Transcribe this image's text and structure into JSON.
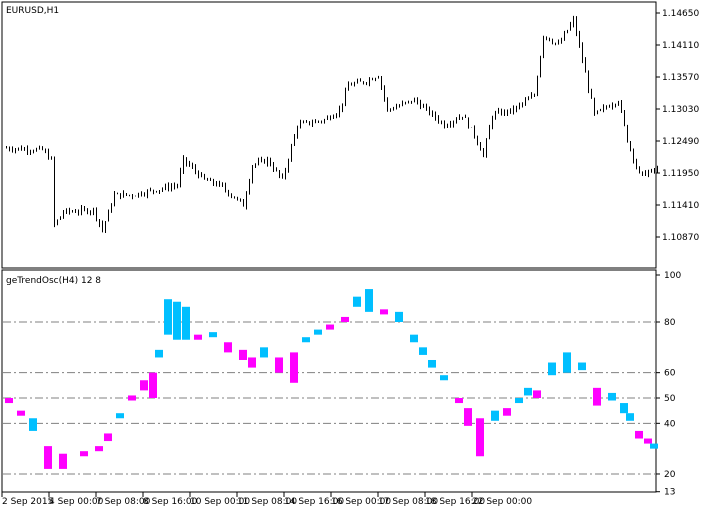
{
  "chart_data": [
    {
      "type": "bar",
      "title": "EURUSD,H1",
      "symbol": "EURUSD",
      "timeframe": "H1",
      "y_ticks": [
        1.1465,
        1.1411,
        1.1357,
        1.1303,
        1.1249,
        1.1195,
        1.1141,
        1.1087
      ],
      "ylim": [
        1.1047,
        1.1483
      ],
      "bar_color": "#000000",
      "close_keypoints": [
        [
          1,
          1.12372
        ],
        [
          13,
          1.12338
        ],
        [
          16,
          1.12169
        ],
        [
          17,
          1.11072
        ],
        [
          20,
          1.11292
        ],
        [
          30,
          1.11326
        ],
        [
          33,
          1.10988
        ],
        [
          37,
          1.11579
        ],
        [
          43,
          1.11579
        ],
        [
          58,
          1.11747
        ],
        [
          60,
          1.12169
        ],
        [
          67,
          1.11832
        ],
        [
          72,
          1.11747
        ],
        [
          80,
          1.1141
        ],
        [
          83,
          1.12085
        ],
        [
          88,
          1.12169
        ],
        [
          93,
          1.11832
        ],
        [
          98,
          1.1276
        ],
        [
          107,
          1.12844
        ],
        [
          112,
          1.13013
        ],
        [
          115,
          1.13435
        ],
        [
          120,
          1.13486
        ],
        [
          125,
          1.13604
        ],
        [
          128,
          1.13013
        ],
        [
          137,
          1.13182
        ],
        [
          147,
          1.1276
        ],
        [
          153,
          1.12929
        ],
        [
          157,
          1.12591
        ],
        [
          160,
          1.12254
        ],
        [
          163,
          1.12929
        ],
        [
          170,
          1.13013
        ],
        [
          177,
          1.13266
        ],
        [
          180,
          1.14279
        ],
        [
          185,
          1.1411
        ],
        [
          190,
          1.14532
        ],
        [
          193,
          1.13857
        ],
        [
          197,
          1.12929
        ],
        [
          202,
          1.13097
        ],
        [
          205,
          1.13182
        ],
        [
          208,
          1.12507
        ],
        [
          212,
          1.11916
        ],
        [
          218,
          1.12001
        ]
      ]
    },
    {
      "type": "heatmap",
      "title": "geTrendOsc(H4) 12 8",
      "y_ticks": [
        100,
        80,
        60,
        50,
        40,
        20,
        13
      ],
      "levels": [
        80,
        60,
        50,
        40,
        20
      ],
      "ylim": [
        13,
        100
      ],
      "colors": {
        "up": "#00BFFF",
        "down": "#FF00FF"
      },
      "blocks": [
        [
          2,
          48,
          50,
          "down"
        ],
        [
          6,
          43,
          45,
          "down"
        ],
        [
          10,
          37,
          42,
          "up"
        ],
        [
          15,
          22,
          31,
          "down"
        ],
        [
          20,
          22,
          28,
          "down"
        ],
        [
          27,
          27,
          29,
          "down"
        ],
        [
          32,
          29,
          31,
          "down"
        ],
        [
          35,
          33,
          36,
          "down"
        ],
        [
          39,
          42,
          44,
          "up"
        ],
        [
          43,
          49,
          51,
          "down"
        ],
        [
          47,
          53,
          57,
          "down"
        ],
        [
          50,
          50,
          60,
          "down"
        ],
        [
          52,
          66,
          69,
          "up"
        ],
        [
          55,
          75,
          89,
          "up"
        ],
        [
          58,
          73,
          88,
          "up"
        ],
        [
          61,
          73,
          86,
          "up"
        ],
        [
          65,
          73,
          75,
          "down"
        ],
        [
          70,
          74,
          76,
          "up"
        ],
        [
          75,
          68,
          72,
          "down"
        ],
        [
          80,
          65,
          69,
          "down"
        ],
        [
          83,
          62,
          66,
          "down"
        ],
        [
          87,
          66,
          70,
          "up"
        ],
        [
          92,
          60,
          66,
          "down"
        ],
        [
          97,
          56,
          68,
          "down"
        ],
        [
          101,
          72,
          74,
          "up"
        ],
        [
          105,
          75,
          77,
          "up"
        ],
        [
          109,
          77,
          79,
          "down"
        ],
        [
          114,
          80,
          82,
          "down"
        ],
        [
          118,
          86,
          90,
          "up"
        ],
        [
          122,
          84,
          93,
          "up"
        ],
        [
          127,
          83,
          85,
          "down"
        ],
        [
          132,
          80,
          84,
          "up"
        ],
        [
          137,
          72,
          75,
          "up"
        ],
        [
          140,
          67,
          70,
          "up"
        ],
        [
          143,
          62,
          65,
          "up"
        ],
        [
          147,
          57,
          59,
          "up"
        ],
        [
          152,
          48,
          50,
          "down"
        ],
        [
          155,
          39,
          46,
          "down"
        ],
        [
          159,
          27,
          42,
          "down"
        ],
        [
          164,
          41,
          45,
          "up"
        ],
        [
          168,
          43,
          46,
          "down"
        ],
        [
          172,
          48,
          50,
          "up"
        ],
        [
          175,
          51,
          54,
          "up"
        ],
        [
          178,
          50,
          53,
          "down"
        ],
        [
          183,
          59,
          64,
          "up"
        ],
        [
          188,
          60,
          68,
          "up"
        ],
        [
          193,
          61,
          64,
          "up"
        ],
        [
          198,
          47,
          54,
          "down"
        ],
        [
          203,
          49,
          52,
          "up"
        ],
        [
          207,
          44,
          48,
          "up"
        ],
        [
          209,
          41,
          44,
          "up"
        ],
        [
          212,
          34,
          37,
          "down"
        ],
        [
          215,
          32,
          34,
          "down"
        ],
        [
          217,
          30,
          32,
          "up"
        ]
      ]
    }
  ],
  "x_axis": {
    "labels": [
      "2 Sep 2015",
      "4 Sep 00:00",
      "7 Sep 08:00",
      "8 Sep 16:00",
      "10 Sep 00:00",
      "11 Sep 08:00",
      "14 Sep 16:00",
      "16 Sep 00:00",
      "17 Sep 08:00",
      "18 Sep 16:00",
      "22 Sep 00:00"
    ]
  }
}
